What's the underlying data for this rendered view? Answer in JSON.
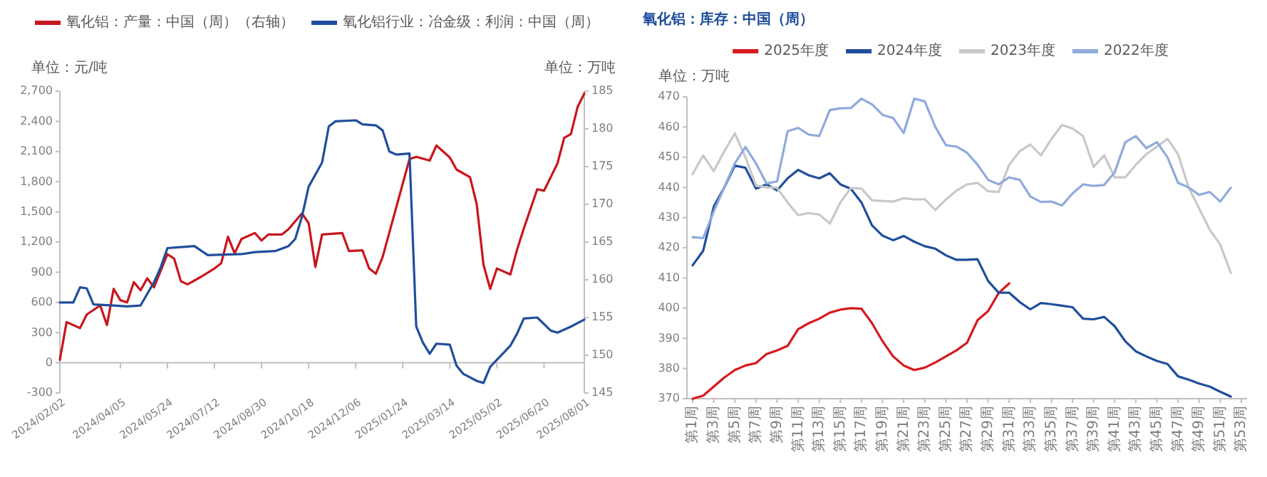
{
  "chart_data": [
    {
      "type": "line",
      "xlim": [
        "2024-02-02",
        "2025-08-01"
      ],
      "xticks": [
        {
          "value": "2024-02-02",
          "label": "2024/02/02"
        },
        {
          "value": "2024-04-05",
          "label": "2024/04/05"
        },
        {
          "value": "2024-05-24",
          "label": "2024/05/24"
        },
        {
          "value": "2024-07-12",
          "label": "2024/07/12"
        },
        {
          "value": "2024-08-30",
          "label": "2024/08/30"
        },
        {
          "value": "2024-10-18",
          "label": "2024/10/18"
        },
        {
          "value": "2024-12-06",
          "label": "2024/12/06"
        },
        {
          "value": "2025-01-24",
          "label": "2025/01/24"
        },
        {
          "value": "2025-03-14",
          "label": "2025/03/14"
        },
        {
          "value": "2025-05-02",
          "label": "2025/05/02"
        },
        {
          "value": "2025-06-20",
          "label": "2025/06/20"
        },
        {
          "value": "2025-08-01",
          "label": "2025/08/01"
        }
      ],
      "ylim": [
        -300,
        2700
      ],
      "yticks": [
        -300,
        0,
        300,
        600,
        900,
        {
          "value": 1200,
          "label": "1,200"
        },
        {
          "value": 1500,
          "label": "1,500"
        },
        {
          "value": 1800,
          "label": "1,800"
        },
        {
          "value": 2100,
          "label": "2,100"
        },
        {
          "value": 2400,
          "label": "2,400"
        },
        {
          "value": 2700,
          "label": "2,700"
        }
      ],
      "y2lim": [
        145,
        185
      ],
      "y2ticks": [
        145,
        150,
        155,
        160,
        165,
        170,
        175,
        180,
        185
      ],
      "ylabel": "单位：元/吨",
      "y2label": "单位：万吨",
      "legend": "top",
      "series": [
        {
          "name": "氧化铝：产量：中国（周）（右轴）",
          "color": "#c8161d",
          "axis": "y2",
          "x": [
            "2024-02-02",
            "2024-02-09",
            "2024-02-23",
            "2024-03-01",
            "2024-03-15",
            "2024-03-22",
            "2024-03-29",
            "2024-04-05",
            "2024-04-12",
            "2024-04-19",
            "2024-04-26",
            "2024-05-03",
            "2024-05-10",
            "2024-05-24",
            "2024-05-31",
            "2024-06-07",
            "2024-06-14",
            "2024-06-28",
            "2024-07-12",
            "2024-07-19",
            "2024-07-26",
            "2024-08-02",
            "2024-08-09",
            "2024-08-23",
            "2024-08-30",
            "2024-09-06",
            "2024-09-20",
            "2024-09-27",
            "2024-10-11",
            "2024-10-18",
            "2024-10-25",
            "2024-11-01",
            "2024-11-22",
            "2024-11-29",
            "2024-12-13",
            "2024-12-20",
            "2024-12-27",
            "2025-01-03",
            "2025-01-31",
            "2025-02-07",
            "2025-02-21",
            "2025-02-28",
            "2025-03-07",
            "2025-03-14",
            "2025-03-21",
            "2025-04-04",
            "2025-04-11",
            "2025-04-18",
            "2025-04-25",
            "2025-05-02",
            "2025-05-16",
            "2025-05-23",
            "2025-05-30",
            "2025-06-13",
            "2025-06-20",
            "2025-07-04",
            "2025-07-11",
            "2025-07-18",
            "2025-07-25",
            "2025-08-01"
          ],
          "values": [
            149.4,
            154.4,
            153.6,
            155.4,
            156.6,
            154,
            158.8,
            157.3,
            157,
            159.7,
            158.6,
            160.2,
            159,
            163.4,
            162.8,
            159.8,
            159.4,
            160.4,
            161.5,
            162.2,
            165.7,
            163.5,
            165.4,
            166.2,
            165.2,
            166,
            166,
            166.7,
            168.8,
            167.5,
            161.7,
            166,
            166.2,
            163.8,
            163.9,
            161.5,
            160.8,
            163,
            176,
            176.3,
            175.8,
            177.8,
            177,
            176.2,
            174.6,
            173.6,
            170,
            162,
            158.8,
            161.5,
            160.7,
            164,
            166.8,
            172,
            171.8,
            175.4,
            178.8,
            179.3,
            182.9,
            184.7
          ]
        },
        {
          "name": "氧化铝行业：冶金级：利润：中国（周）",
          "color": "#1f4e9c",
          "x": [
            "2024-02-02",
            "2024-02-16",
            "2024-02-23",
            "2024-03-01",
            "2024-03-08",
            "2024-03-29",
            "2024-04-12",
            "2024-04-26",
            "2024-05-10",
            "2024-05-17",
            "2024-05-24",
            "2024-06-21",
            "2024-07-05",
            "2024-08-09",
            "2024-08-23",
            "2024-09-13",
            "2024-09-27",
            "2024-10-04",
            "2024-10-11",
            "2024-10-18",
            "2024-10-25",
            "2024-11-01",
            "2024-11-08",
            "2024-11-15",
            "2024-12-06",
            "2024-12-13",
            "2024-12-27",
            "2025-01-03",
            "2025-01-10",
            "2025-01-17",
            "2025-01-31",
            "2025-02-07",
            "2025-02-14",
            "2025-02-21",
            "2025-02-28",
            "2025-03-14",
            "2025-03-21",
            "2025-03-28",
            "2025-04-11",
            "2025-04-18",
            "2025-04-25",
            "2025-05-02",
            "2025-05-16",
            "2025-05-23",
            "2025-05-30",
            "2025-06-13",
            "2025-06-27",
            "2025-07-04",
            "2025-07-18",
            "2025-08-01"
          ],
          "values": [
            600,
            600,
            750,
            740,
            580,
            570,
            560,
            570,
            800,
            950,
            1140,
            1160,
            1070,
            1080,
            1100,
            1110,
            1160,
            1230,
            1450,
            1750,
            1870,
            1990,
            2350,
            2400,
            2410,
            2370,
            2360,
            2310,
            2100,
            2070,
            2080,
            360,
            200,
            90,
            190,
            180,
            -30,
            -110,
            -180,
            -200,
            -40,
            30,
            170,
            290,
            440,
            450,
            320,
            300,
            360,
            430
          ]
        }
      ]
    },
    {
      "type": "line",
      "title": "氧化铝：库存：中国（周）",
      "ylabel": "单位：万吨",
      "legend": "top",
      "categories": [
        "第1周",
        null,
        "第3周",
        null,
        "第5周",
        null,
        "第7周",
        null,
        "第9周",
        null,
        "第11周",
        null,
        "第13周",
        null,
        "第15周",
        null,
        "第17周",
        null,
        "第19周",
        null,
        "第21周",
        null,
        "第23周",
        null,
        "第25周",
        null,
        "第27周",
        null,
        "第29周",
        null,
        "第31周",
        null,
        "第33周",
        null,
        "第35周",
        null,
        "第37周",
        null,
        "第39周",
        null,
        "第41周",
        null,
        "第43周",
        null,
        "第45周",
        null,
        "第47周",
        null,
        "第49周",
        null,
        "第51周",
        null,
        "第53周"
      ],
      "ylim": [
        370,
        470
      ],
      "yticks": [
        370,
        380,
        390,
        400,
        410,
        420,
        430,
        440,
        450,
        460,
        470
      ],
      "series": [
        {
          "name": "2025年度",
          "color": "#d7191c",
          "values": [
            370,
            371,
            374,
            377,
            379.5,
            381,
            381.8,
            384.8,
            386,
            387.5,
            393,
            395,
            396.5,
            398.5,
            399.5,
            400,
            399.8,
            395,
            389,
            384,
            381,
            379.5,
            380.3,
            382,
            384,
            386,
            388.5,
            396,
            399,
            405,
            408.2,
            null,
            null,
            null,
            null,
            null,
            null,
            null,
            null,
            null,
            null,
            null,
            null,
            null,
            null,
            null,
            null,
            null,
            null,
            null,
            null,
            null,
            null
          ]
        },
        {
          "name": "2024年度",
          "color": "#1f4e9c",
          "values": [
            414.2,
            419,
            433.6,
            440,
            447.2,
            446.5,
            439.6,
            441,
            439,
            443,
            445.8,
            444,
            443,
            444.7,
            441,
            439.5,
            435,
            427.4,
            424,
            422.5,
            423.9,
            422,
            420.5,
            419.7,
            417.5,
            416,
            416,
            416.2,
            409,
            405.1,
            405.1,
            402,
            399.6,
            401.7,
            401.3,
            400.8,
            400.3,
            396.5,
            396.3,
            397.1,
            394,
            389,
            385.7,
            384,
            382.5,
            381.5,
            377.4,
            376.3,
            375,
            374,
            372.3,
            370.7,
            null
          ]
        },
        {
          "name": "2023年度",
          "color": "#c8c8c8",
          "values": [
            444.4,
            450.6,
            445.4,
            452,
            457.9,
            450,
            440.6,
            440,
            439.9,
            435,
            430.8,
            431.5,
            431,
            428,
            435,
            439.8,
            439.6,
            435.7,
            435.5,
            435.3,
            436.4,
            436,
            436.1,
            432.5,
            436,
            438.9,
            441,
            441.5,
            438.7,
            438.5,
            447.5,
            452,
            454.2,
            450.6,
            456,
            460.7,
            459.5,
            457,
            446.8,
            450.6,
            443.3,
            443.3,
            447.5,
            451,
            453.5,
            456.1,
            451,
            440,
            433,
            426,
            421.1,
            411.7,
            null
          ]
        },
        {
          "name": "2022年度",
          "color": "#8faadc",
          "values": [
            423.5,
            423.2,
            432,
            440,
            448,
            453.4,
            448,
            441.3,
            442,
            458.6,
            459.7,
            457.5,
            457,
            465.6,
            466.2,
            466.3,
            469.4,
            467.5,
            464,
            463,
            458,
            469.4,
            468.5,
            460,
            454,
            453.5,
            451.5,
            447.5,
            442.5,
            441,
            443.3,
            442.5,
            437,
            435.2,
            435.3,
            434,
            438,
            441,
            440.5,
            440.8,
            445,
            455,
            457,
            453,
            455,
            450,
            441.5,
            440,
            437.5,
            438.5,
            435.3,
            439.9,
            null
          ]
        }
      ]
    }
  ]
}
